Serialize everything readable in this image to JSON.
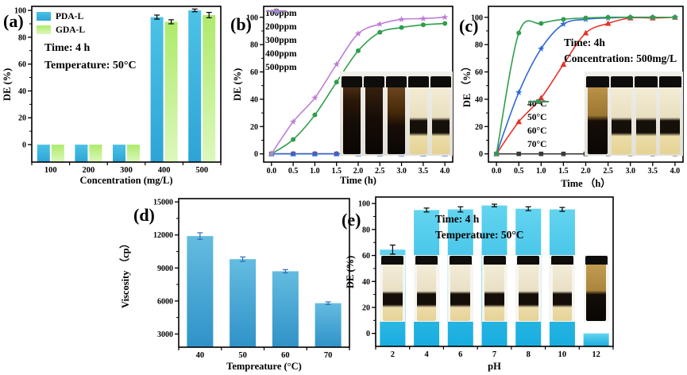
{
  "figure": {
    "background": "#ffffff"
  },
  "chart_data": [
    {
      "panel": "a",
      "panel_label": "(a)",
      "type": "bar",
      "categories": [
        "100",
        "200",
        "300",
        "400",
        "500"
      ],
      "series": [
        {
          "name": "PDA-L",
          "color": "#44bce2",
          "gradient": [
            "#4cc2e6",
            "#2da4d6"
          ],
          "values": [
            0,
            0,
            0,
            95,
            100
          ],
          "errors": [
            0,
            0,
            0,
            1.5,
            1
          ]
        },
        {
          "name": "GDA-L",
          "color": "#bdef83",
          "gradient": [
            "#aeea6c",
            "#dcf8bc"
          ],
          "values": [
            0,
            0,
            0,
            91.5,
            96.5
          ],
          "errors": [
            0,
            0,
            0,
            1.5,
            2
          ]
        }
      ],
      "annotations": [
        "Time: 4 h",
        "Temperature: 50°C"
      ],
      "xlabel": "Concentration (mg/L)",
      "ylabel": "DE (%)",
      "ylim": [
        -13,
        103
      ],
      "yticks": [
        0,
        20,
        40,
        60,
        80,
        100
      ],
      "error_color": "#000000",
      "show_legend": true
    },
    {
      "panel": "b",
      "panel_label": "(b)",
      "type": "line",
      "x": [
        0,
        0.5,
        1.0,
        1.5,
        2.0,
        2.5,
        3.0,
        3.5,
        4.0
      ],
      "series": [
        {
          "name": "100ppm",
          "color": "#3a3a3a",
          "marker": "square",
          "values": [
            0,
            0,
            0,
            0,
            0,
            0,
            0,
            0,
            0
          ]
        },
        {
          "name": "200ppm",
          "color": "#e63228",
          "marker": "circle",
          "values": [
            0,
            0,
            0,
            0,
            0,
            0,
            0,
            0,
            0
          ]
        },
        {
          "name": "300ppm",
          "color": "#2f68d8",
          "marker": "triangle",
          "values": [
            0,
            0,
            0,
            0,
            0,
            0,
            0,
            0,
            0
          ]
        },
        {
          "name": "400ppm",
          "color": "#2f9e4c",
          "marker": "circle",
          "values": [
            0,
            10.5,
            28.5,
            52.5,
            75.5,
            89,
            92.5,
            94.5,
            95.5
          ]
        },
        {
          "name": "500ppm",
          "color": "#bc7fd8",
          "marker": "star",
          "values": [
            0,
            23.5,
            41,
            65.5,
            88,
            95,
            98.5,
            99,
            100
          ]
        }
      ],
      "xlabel": "Time (h)",
      "ylabel": "DE (%)",
      "xlim": [
        -0.18,
        4.18
      ],
      "ylim": [
        -6,
        108
      ],
      "xticks": [
        0,
        0.5,
        1,
        1.5,
        2,
        2.5,
        3,
        3.5,
        4
      ],
      "yticks": [
        0,
        20,
        40,
        60,
        80,
        100
      ],
      "show_legend": true,
      "inset_vials": [
        "dark",
        "dark2",
        "brown-top",
        "light-banded",
        "light-banded"
      ]
    },
    {
      "panel": "c",
      "panel_label": "(c)",
      "type": "line",
      "x": [
        0,
        0.5,
        1.0,
        1.5,
        2.0,
        2.5,
        3.0,
        3.5,
        4.0
      ],
      "series": [
        {
          "name": "40°C",
          "color": "#3a3a3a",
          "marker": "square",
          "values": [
            0,
            0,
            0,
            0,
            0,
            0,
            0,
            0,
            0
          ]
        },
        {
          "name": "50°C",
          "color": "#e63228",
          "marker": "triangle",
          "values": [
            0,
            23.5,
            41,
            65.5,
            88.5,
            95.5,
            99.5,
            99.5,
            100
          ]
        },
        {
          "name": "60°C",
          "color": "#2f68d8",
          "marker": "star",
          "values": [
            0,
            45,
            77,
            95,
            98.5,
            99.5,
            100,
            100,
            100
          ]
        },
        {
          "name": "70°C",
          "color": "#2f9e4c",
          "marker": "circle",
          "values": [
            0,
            88.5,
            95.5,
            98.5,
            99.5,
            100,
            100,
            100,
            100
          ]
        }
      ],
      "annotations": [
        "Time: 4h",
        "Concentration: 500mg/L"
      ],
      "xlabel": "Time （h）",
      "ylabel": "DE （%）",
      "xlim": [
        -0.18,
        4.18
      ],
      "ylim": [
        -6,
        108
      ],
      "xticks": [
        0,
        0.5,
        1,
        1.5,
        2,
        2.5,
        3,
        3.5,
        4
      ],
      "yticks": [
        0,
        20,
        40,
        60,
        80,
        100
      ],
      "show_legend": true,
      "inset_vials": [
        "tan-top-black",
        "light-banded",
        "light-banded",
        "light-banded"
      ]
    },
    {
      "panel": "d",
      "panel_label": "(d)",
      "type": "bar",
      "categories": [
        "40",
        "50",
        "60",
        "70"
      ],
      "series": [
        {
          "name": "Viscosity",
          "color": "#3e9ccd",
          "gradient": [
            "#64bce0",
            "#2f92c8"
          ],
          "values": [
            11900,
            9800,
            8700,
            5800
          ],
          "errors": [
            300,
            200,
            150,
            120
          ]
        }
      ],
      "xlabel": "Tempreature (°C)",
      "ylabel": "Viscosity （cp）",
      "ylim": [
        1800,
        15300
      ],
      "yticks": [
        3000,
        6000,
        9000,
        12000,
        15000
      ],
      "error_color": "#2e6db4",
      "show_legend": false
    },
    {
      "panel": "e",
      "panel_label": "(e)",
      "type": "bar",
      "categories": [
        "2",
        "4",
        "6",
        "7",
        "8",
        "10",
        "12"
      ],
      "series": [
        {
          "name": "DE",
          "color": "#40c4e6",
          "gradient": [
            "#63d4ef",
            "#18ade0"
          ],
          "values": [
            64.5,
            95,
            95.5,
            98.5,
            96,
            95.5,
            0
          ],
          "errors": [
            3.5,
            1.5,
            2,
            1,
            1.5,
            1.5,
            0
          ]
        }
      ],
      "annotations": [
        "Time: 4 h",
        "Temperature: 50°C"
      ],
      "xlabel": "pH",
      "ylabel": "DE (%)",
      "ylim": [
        -10,
        105
      ],
      "yticks": [
        0,
        20,
        40,
        60,
        80,
        100
      ],
      "error_color": "#000000",
      "show_legend": false,
      "overlay_vials": [
        "e-banded",
        "e-banded",
        "e-banded",
        "e-banded",
        "e-banded",
        "e-banded",
        "e-ph12"
      ]
    }
  ]
}
